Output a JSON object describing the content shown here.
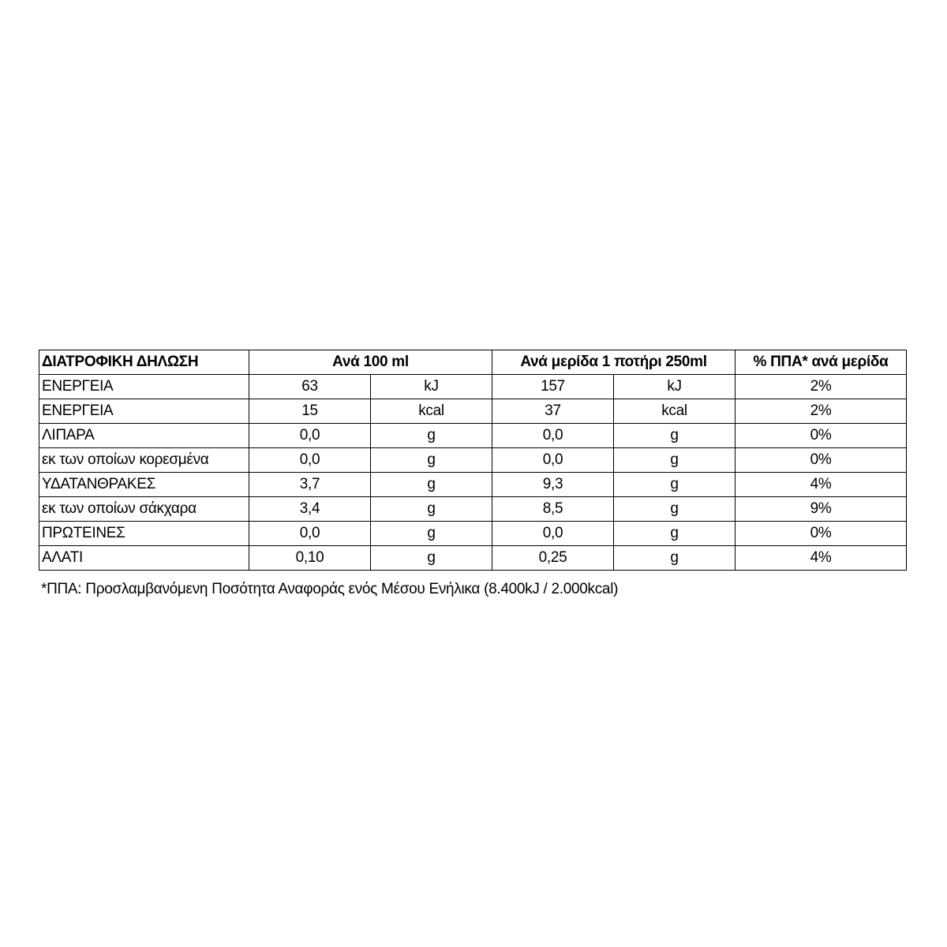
{
  "header": {
    "title": "ΔΙΑΤΡΟΦΙΚΗ ΔΗΛΩΣΗ",
    "per100": "Ανά 100 ml",
    "perServing": "Ανά μερίδα 1 ποτήρι 250ml",
    "ri": "% ΠΠΑ* ανά μερίδα"
  },
  "rows": [
    {
      "name": "ΕΝΕΡΓΕΙΑ",
      "v100": "63",
      "u100": "kJ",
      "vs": "157",
      "us": "kJ",
      "ri": "2%"
    },
    {
      "name": "ΕΝΕΡΓΕΙΑ",
      "v100": "15",
      "u100": "kcal",
      "vs": "37",
      "us": "kcal",
      "ri": "2%"
    },
    {
      "name": "ΛΙΠΑΡΑ",
      "v100": "0,0",
      "u100": "g",
      "vs": "0,0",
      "us": "g",
      "ri": "0%"
    },
    {
      "name": "εκ των οποίων κορεσμένα",
      "v100": "0,0",
      "u100": "g",
      "vs": "0,0",
      "us": "g",
      "ri": "0%"
    },
    {
      "name": "ΥΔΑΤΑΝΘΡΑΚΕΣ",
      "v100": "3,7",
      "u100": "g",
      "vs": "9,3",
      "us": "g",
      "ri": "4%"
    },
    {
      "name": "εκ των οποίων σάκχαρα",
      "v100": "3,4",
      "u100": "g",
      "vs": "8,5",
      "us": "g",
      "ri": "9%"
    },
    {
      "name": "ΠΡΩΤΕΙΝΕΣ",
      "v100": "0,0",
      "u100": "g",
      "vs": "0,0",
      "us": "g",
      "ri": "0%"
    },
    {
      "name": "ΑΛΑΤΙ",
      "v100": "0,10",
      "u100": "g",
      "vs": "0,25",
      "us": "g",
      "ri": "4%"
    }
  ],
  "footnote": "*ΠΠΑ: Προσλαμβανόμενη Ποσότητα Αναφοράς ενός Μέσου Ενήλικα (8.400kJ / 2.000kcal)"
}
